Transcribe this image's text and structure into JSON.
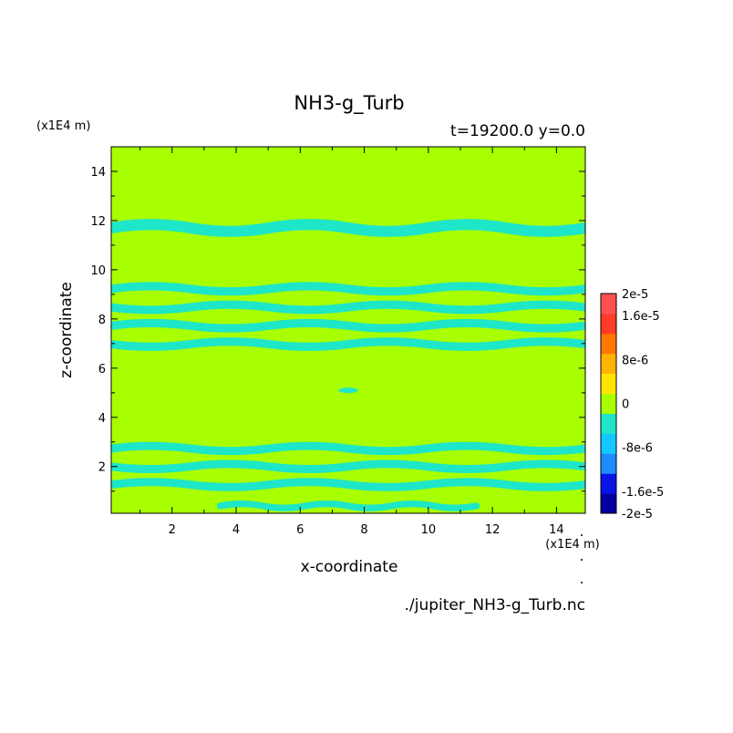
{
  "chart_data": {
    "type": "heatmap",
    "title": "NH3-g_Turb",
    "subtitle": "t=19200.0 y=0.0",
    "xlabel": "x-coordinate",
    "ylabel": "z-coordinate",
    "x_unit": "(x1E4 m)",
    "y_unit": "(x1E4 m)",
    "source_file": "./jupiter_NH3-g_Turb.nc",
    "xlim": [
      0.1,
      14.9
    ],
    "ylim": [
      0.1,
      15.0
    ],
    "x_ticks": [
      2,
      4,
      6,
      8,
      10,
      12,
      14
    ],
    "x_tick_labels": [
      "2",
      "4",
      "6",
      "8",
      "10",
      "12",
      "14"
    ],
    "y_ticks": [
      2,
      4,
      6,
      8,
      10,
      12,
      14
    ],
    "y_tick_labels": [
      "2",
      "4",
      "6",
      "8",
      "10",
      "12",
      "14"
    ],
    "background_value_level": "0",
    "colorbar": {
      "levels": [
        -2e-05,
        -1.6e-05,
        -1.2e-05,
        -8e-06,
        -4e-06,
        0,
        4e-06,
        8e-06,
        1.2e-05,
        1.6e-05,
        2e-05
      ],
      "tick_labels": [
        "2e-5",
        "1.6e-5",
        "8e-6",
        "0",
        "-8e-6",
        "-1.6e-5",
        "-2e-5"
      ],
      "tick_values": [
        2e-05,
        1.6e-05,
        8e-06,
        0,
        -8e-06,
        -1.6e-05,
        -2e-05
      ],
      "colors_bottom_to_top": [
        "#0000a0",
        "#0a14e6",
        "#1e8cff",
        "#14c8ff",
        "#1ee6c8",
        "#a8ff00",
        "#ffe600",
        "#ffb400",
        "#ff7800",
        "#ff3c28",
        "#ff5050"
      ]
    },
    "colors": {
      "zero_level": "#a8ff00",
      "negative_small": "#1ee6c8"
    },
    "features": [
      {
        "level": "negative_small",
        "z_range": [
          11.2,
          12.2
        ],
        "x_range": [
          0.1,
          14.9
        ],
        "note": "band"
      },
      {
        "level": "negative_small",
        "z_range": [
          6.6,
          9.6
        ],
        "x_range": [
          0.1,
          14.9
        ],
        "note": "band"
      },
      {
        "level": "negative_small",
        "z_range": [
          0.9,
          3.1
        ],
        "x_range": [
          0.1,
          14.9
        ],
        "note": "band"
      },
      {
        "level": "negative_small",
        "z_range": [
          0.1,
          0.7
        ],
        "x_range": [
          3.5,
          11.5
        ],
        "note": "band"
      },
      {
        "level": "negative_small",
        "z_range": [
          5.0,
          5.2
        ],
        "x_range": [
          7.2,
          7.8
        ],
        "note": "blob"
      }
    ]
  }
}
